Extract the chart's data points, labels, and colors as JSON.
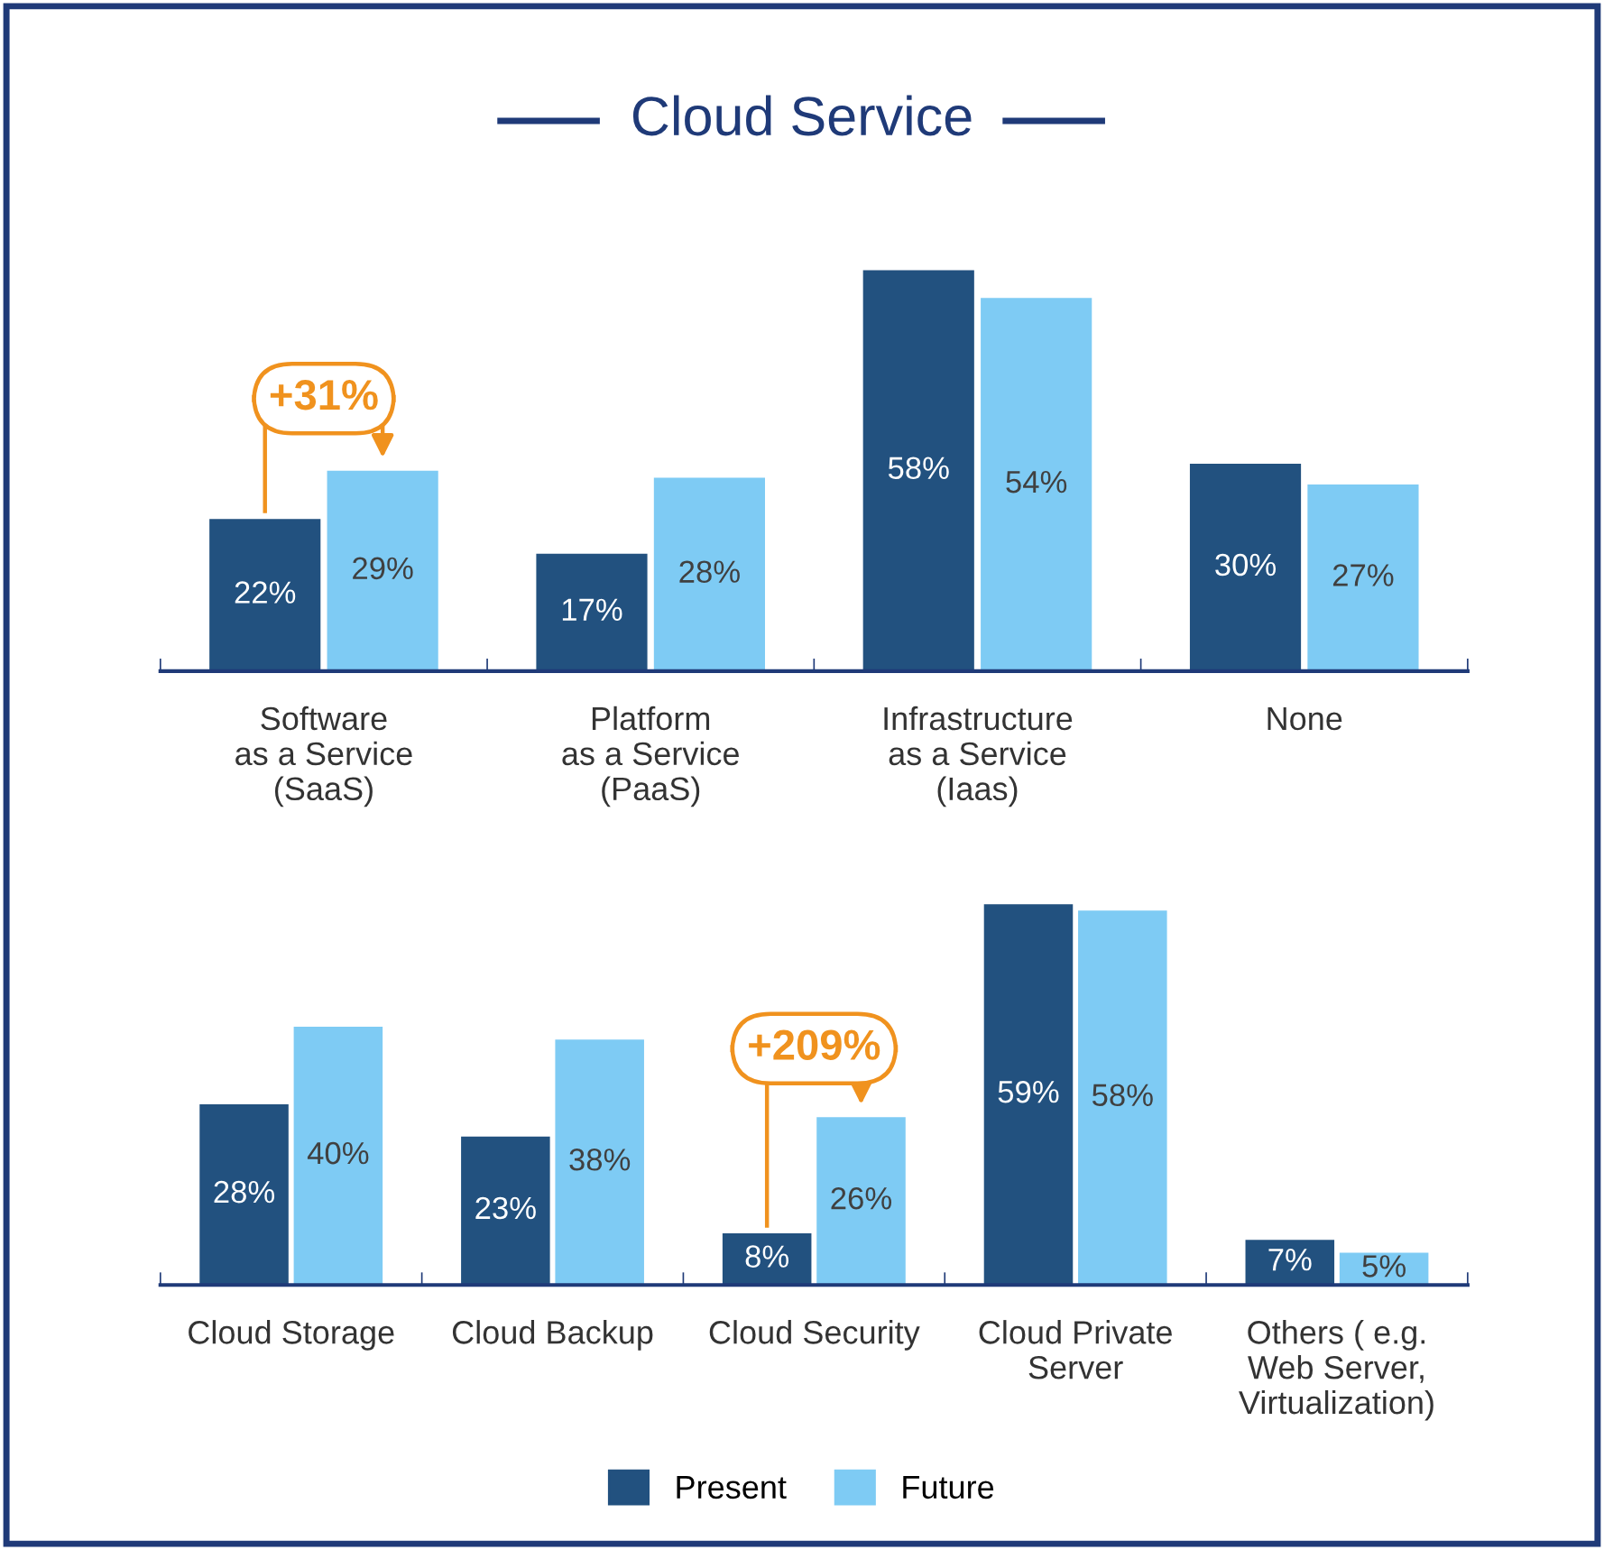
{
  "chart_data": [
    {
      "type": "bar",
      "title": "Cloud Service",
      "categories": [
        "Software\nas a Service\n(SaaS)",
        "Platform\nas a Service\n(PaaS)",
        "Infrastructure\nas a Service\n(Iaas)",
        "None"
      ],
      "series": [
        {
          "name": "Present",
          "color": "#22517f",
          "values": [
            22,
            17,
            58,
            30
          ],
          "value_labels": [
            "22%",
            "17%",
            "58%",
            "30%"
          ]
        },
        {
          "name": "Future",
          "color": "#7ecbf4",
          "values": [
            29,
            28,
            54,
            27
          ],
          "value_labels": [
            "29%",
            "28%",
            "54%",
            "27%"
          ]
        }
      ],
      "legend": "bottom",
      "annotations": [
        {
          "text": "+31%",
          "x": "Software\nas a Service\n(SaaS)",
          "y": 29
        }
      ]
    },
    {
      "type": "bar",
      "categories": [
        "Cloud Storage",
        "Cloud Backup",
        "Cloud Security",
        "Cloud Private\nServer",
        "Others ( e.g.\nWeb Server,\nVirtualization)"
      ],
      "series": [
        {
          "color": "#22517f",
          "values": [
            28,
            23,
            8,
            59,
            7
          ],
          "value_labels": [
            "28%",
            "23%",
            "8%",
            "59%",
            "7%"
          ]
        },
        {
          "color": "#7ecbf4",
          "values": [
            40,
            38,
            26,
            58,
            5
          ],
          "value_labels": [
            "40%",
            "38%",
            "26%",
            "58%",
            "5%"
          ]
        }
      ],
      "annotations": [
        {
          "text": "+209%",
          "x": "Cloud Security",
          "y": 26
        }
      ]
    }
  ]
}
